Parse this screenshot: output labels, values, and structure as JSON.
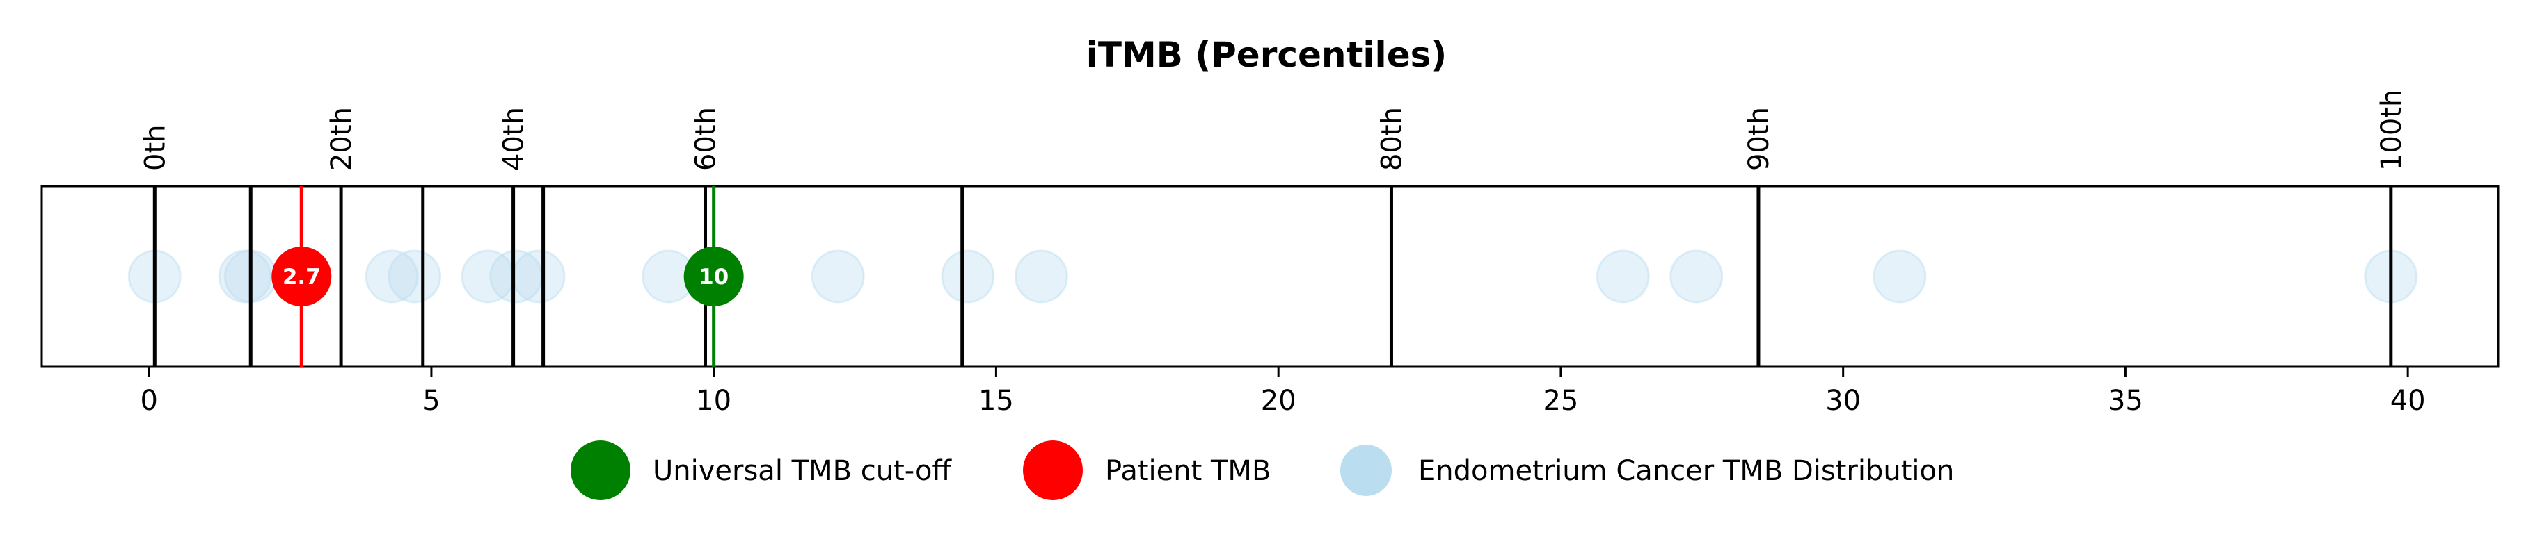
{
  "chart_data": {
    "type": "scatter",
    "title": "iTMB (Percentiles)",
    "xlim": [
      -1.9,
      41.6
    ],
    "x_ticks": [
      0,
      5,
      10,
      15,
      20,
      25,
      30,
      35,
      40
    ],
    "x_tick_labels": [
      "0",
      "5",
      "10",
      "15",
      "20",
      "25",
      "30",
      "35",
      "40"
    ],
    "grid": false,
    "legend_placement": "bottom-center",
    "percentile_lines": [
      {
        "value": 0.1,
        "label": "0th"
      },
      {
        "value": 1.8,
        "label": ""
      },
      {
        "value": 3.4,
        "label": "20th"
      },
      {
        "value": 4.85,
        "label": ""
      },
      {
        "value": 6.45,
        "label": "40th"
      },
      {
        "value": 6.98,
        "label": ""
      },
      {
        "value": 9.85,
        "label": "60th"
      },
      {
        "value": 14.4,
        "label": ""
      },
      {
        "value": 22.0,
        "label": "80th"
      },
      {
        "value": 28.5,
        "label": "90th"
      },
      {
        "value": 39.7,
        "label": "100th"
      }
    ],
    "series": [
      {
        "name": "Endometrium Cancer TMB Distribution",
        "color": "#b7dbef",
        "x": [
          0.1,
          1.7,
          1.8,
          4.3,
          4.7,
          6.0,
          6.5,
          6.9,
          9.2,
          12.2,
          14.5,
          15.8,
          26.1,
          27.4,
          31.0,
          39.7
        ]
      },
      {
        "name": "Patient TMB",
        "color": "#ff0000",
        "x": [
          2.7
        ],
        "value_label": "2.7"
      },
      {
        "name": "Universal TMB cut-off",
        "color": "#008000",
        "x": [
          10
        ],
        "value_label": "10"
      }
    ],
    "legend": [
      {
        "label": "Universal TMB cut-off",
        "color": "#008000"
      },
      {
        "label": "Patient TMB",
        "color": "#ff0000"
      },
      {
        "label": "Endometrium Cancer TMB Distribution",
        "color": "#b7dbef"
      }
    ]
  }
}
